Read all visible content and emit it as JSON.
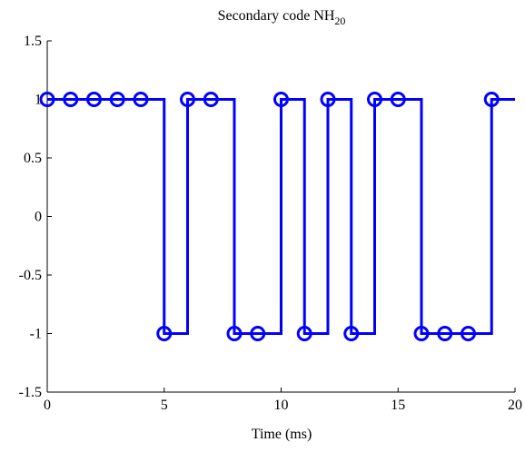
{
  "chart_data": {
    "type": "line",
    "style": "step",
    "title": "Secondary code NH",
    "title_subscript": "20",
    "xlabel": "Time (ms)",
    "ylabel": "",
    "xlim": [
      0,
      20
    ],
    "ylim": [
      -1.5,
      1.5
    ],
    "x_ticks": [
      0,
      5,
      10,
      15,
      20
    ],
    "x_tick_labels": [
      "0",
      "5",
      "10",
      "15",
      "20"
    ],
    "y_ticks": [
      1.5,
      1,
      0.5,
      0,
      -0.5,
      -1,
      -1.5
    ],
    "y_tick_labels": [
      "1.5",
      "1",
      "0.5",
      "0",
      "-0.5",
      "-1",
      "-1.5"
    ],
    "grid": false,
    "box": "left-bottom",
    "series": [
      {
        "marker": "circle",
        "color": "#0000ff",
        "x": [
          0,
          1,
          2,
          3,
          4,
          5,
          6,
          7,
          8,
          9,
          10,
          11,
          12,
          13,
          14,
          15,
          16,
          17,
          18,
          19
        ],
        "y": [
          1,
          1,
          1,
          1,
          1,
          -1,
          1,
          1,
          -1,
          -1,
          1,
          -1,
          1,
          -1,
          1,
          1,
          -1,
          -1,
          -1,
          1
        ],
        "step_end_x": 20
      }
    ]
  }
}
